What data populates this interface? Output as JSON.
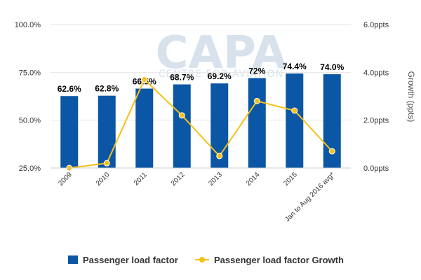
{
  "chart_data": {
    "type": "bar+line",
    "categories": [
      "2009",
      "2010",
      "2011",
      "2012",
      "2013",
      "2014",
      "2015",
      "Jan to Aug 2016 avg*"
    ],
    "series": [
      {
        "name": "Passenger load factor",
        "type": "bar",
        "axis": "left",
        "values": [
          62.6,
          62.8,
          66.5,
          68.7,
          69.2,
          72,
          74.4,
          74.0
        ],
        "labels": [
          "62.6%",
          "62.8%",
          "66.5%",
          "68.7%",
          "69.2%",
          "72%",
          "74.4%",
          "74.0%"
        ],
        "color": "#0b56a5"
      },
      {
        "name": "Passenger load factor Growth",
        "type": "line",
        "axis": "right",
        "values": [
          0.0,
          0.2,
          3.7,
          2.2,
          0.5,
          2.8,
          2.4,
          0.7
        ],
        "color": "#f5c116"
      }
    ],
    "y_left": {
      "ylim": [
        25,
        100
      ],
      "ticks": [
        "25.0%",
        "50.0%",
        "75.0%",
        "100.0%"
      ]
    },
    "y_right": {
      "ylim": [
        0,
        6
      ],
      "ticks": [
        "0.0ppts",
        "2.0ppts",
        "4.0ppts",
        "6.0ppts"
      ],
      "label": "Growth (ppts)"
    },
    "grid": true,
    "legend": "bottom",
    "watermark": {
      "text": "CAPA",
      "subtext": "CENTRE FOR AVIATION"
    }
  }
}
